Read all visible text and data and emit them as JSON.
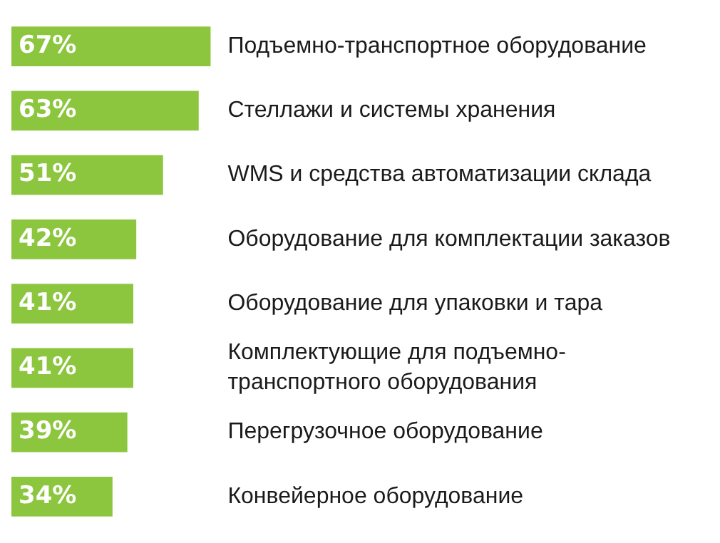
{
  "chart_data": {
    "type": "bar",
    "orientation": "horizontal",
    "categories": [
      "Подъемно-транспортное оборудование",
      "Стеллажи и системы хранения",
      "WMS и средства автоматизации склада",
      "Оборудование для комплектации заказов",
      "Оборудование для упаковки и тара",
      "Комплектующие для подъемно-транспортного оборудования",
      "Перегрузочное оборудование",
      "Конвейерное оборудование"
    ],
    "values": [
      67,
      63,
      51,
      42,
      41,
      41,
      39,
      34
    ],
    "value_labels": [
      "67%",
      "63%",
      "51%",
      "42%",
      "41%",
      "41%",
      "39%",
      "34%"
    ],
    "color": "#8cc63e"
  }
}
